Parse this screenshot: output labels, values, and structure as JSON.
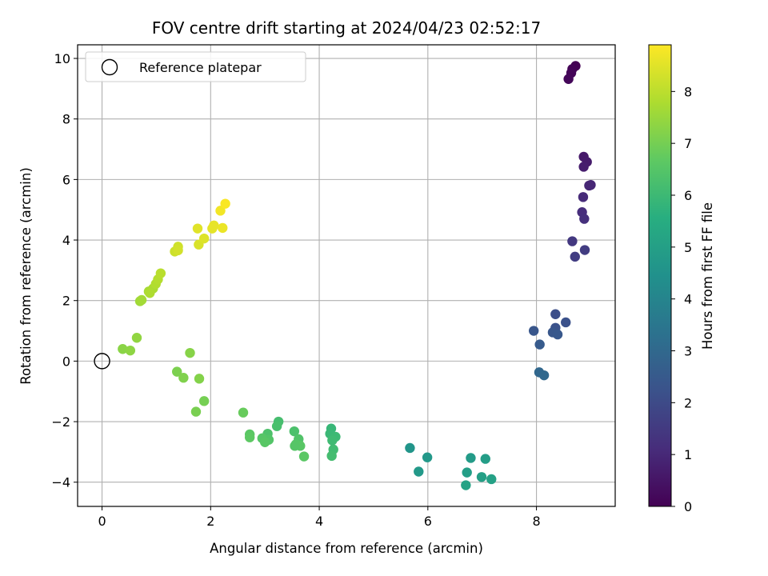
{
  "chart_data": {
    "type": "scatter",
    "title": "FOV centre drift starting at 2024/04/23 02:52:17",
    "xlabel": "Angular distance from reference (arcmin)",
    "ylabel": "Rotation from reference (arcmin)",
    "xlim": [
      -0.45,
      9.45
    ],
    "ylim": [
      -4.8,
      10.45
    ],
    "xticks": [
      0,
      2,
      4,
      6,
      8
    ],
    "yticks": [
      -4,
      -2,
      0,
      2,
      4,
      6,
      8,
      10
    ],
    "grid": true,
    "legend": {
      "position": "top-left",
      "entries": [
        "Reference platepar"
      ]
    },
    "reference_point": {
      "x": 0,
      "y": 0
    },
    "colorbar": {
      "label": "Hours from first FF file",
      "range": [
        0,
        8.9
      ],
      "ticks": [
        0,
        1,
        2,
        3,
        4,
        5,
        6,
        7,
        8
      ],
      "colormap": "viridis"
    },
    "points": [
      {
        "x": 8.72,
        "y": 9.75,
        "t": 0.0
      },
      {
        "x": 8.66,
        "y": 9.65,
        "t": 0.05
      },
      {
        "x": 8.64,
        "y": 9.52,
        "t": 0.1
      },
      {
        "x": 8.59,
        "y": 9.32,
        "t": 0.15
      },
      {
        "x": 8.87,
        "y": 6.75,
        "t": 0.6
      },
      {
        "x": 8.93,
        "y": 6.58,
        "t": 0.65
      },
      {
        "x": 8.87,
        "y": 6.42,
        "t": 0.7
      },
      {
        "x": 9.0,
        "y": 5.82,
        "t": 0.9
      },
      {
        "x": 8.97,
        "y": 5.8,
        "t": 0.95
      },
      {
        "x": 8.86,
        "y": 5.42,
        "t": 1.05
      },
      {
        "x": 8.84,
        "y": 4.92,
        "t": 1.15
      },
      {
        "x": 8.88,
        "y": 4.7,
        "t": 1.2
      },
      {
        "x": 8.66,
        "y": 3.96,
        "t": 1.45
      },
      {
        "x": 8.89,
        "y": 3.67,
        "t": 1.55
      },
      {
        "x": 8.71,
        "y": 3.45,
        "t": 1.6
      },
      {
        "x": 8.35,
        "y": 1.55,
        "t": 2.1
      },
      {
        "x": 8.54,
        "y": 1.28,
        "t": 2.2
      },
      {
        "x": 8.35,
        "y": 1.1,
        "t": 2.25
      },
      {
        "x": 7.95,
        "y": 1.0,
        "t": 2.35
      },
      {
        "x": 8.3,
        "y": 0.95,
        "t": 2.4
      },
      {
        "x": 8.39,
        "y": 0.88,
        "t": 2.45
      },
      {
        "x": 8.06,
        "y": 0.55,
        "t": 2.55
      },
      {
        "x": 8.05,
        "y": -0.37,
        "t": 2.95
      },
      {
        "x": 8.14,
        "y": -0.47,
        "t": 3.0
      },
      {
        "x": 5.67,
        "y": -2.87,
        "t": 4.6
      },
      {
        "x": 5.99,
        "y": -3.18,
        "t": 4.7
      },
      {
        "x": 5.83,
        "y": -3.65,
        "t": 4.75
      },
      {
        "x": 6.79,
        "y": -3.2,
        "t": 4.85
      },
      {
        "x": 7.06,
        "y": -3.23,
        "t": 4.9
      },
      {
        "x": 6.72,
        "y": -3.68,
        "t": 4.95
      },
      {
        "x": 6.99,
        "y": -3.83,
        "t": 5.0
      },
      {
        "x": 7.17,
        "y": -3.9,
        "t": 5.05
      },
      {
        "x": 6.7,
        "y": -4.1,
        "t": 5.1
      },
      {
        "x": 4.22,
        "y": -2.23,
        "t": 5.9
      },
      {
        "x": 4.2,
        "y": -2.4,
        "t": 5.95
      },
      {
        "x": 4.3,
        "y": -2.5,
        "t": 6.0
      },
      {
        "x": 4.24,
        "y": -2.62,
        "t": 6.05
      },
      {
        "x": 4.26,
        "y": -2.92,
        "t": 6.1
      },
      {
        "x": 4.23,
        "y": -3.13,
        "t": 6.15
      },
      {
        "x": 3.25,
        "y": -2.0,
        "t": 6.2
      },
      {
        "x": 3.22,
        "y": -2.15,
        "t": 6.25
      },
      {
        "x": 3.54,
        "y": -2.32,
        "t": 6.3
      },
      {
        "x": 3.05,
        "y": -2.4,
        "t": 6.35
      },
      {
        "x": 3.62,
        "y": -2.58,
        "t": 6.4
      },
      {
        "x": 3.07,
        "y": -2.6,
        "t": 6.45
      },
      {
        "x": 3.57,
        "y": -2.75,
        "t": 6.5
      },
      {
        "x": 3.65,
        "y": -2.8,
        "t": 6.55
      },
      {
        "x": 3.72,
        "y": -3.15,
        "t": 6.6
      },
      {
        "x": 2.95,
        "y": -2.55,
        "t": 6.5
      },
      {
        "x": 3.0,
        "y": -2.68,
        "t": 6.55
      },
      {
        "x": 2.72,
        "y": -2.42,
        "t": 6.6
      },
      {
        "x": 2.72,
        "y": -2.52,
        "t": 6.65
      },
      {
        "x": 3.55,
        "y": -2.8,
        "t": 6.5
      },
      {
        "x": 2.6,
        "y": -1.7,
        "t": 6.8
      },
      {
        "x": 1.88,
        "y": -1.32,
        "t": 7.0
      },
      {
        "x": 1.73,
        "y": -1.67,
        "t": 7.05
      },
      {
        "x": 1.38,
        "y": -0.35,
        "t": 7.1
      },
      {
        "x": 1.5,
        "y": -0.55,
        "t": 7.15
      },
      {
        "x": 1.79,
        "y": -0.58,
        "t": 7.2
      },
      {
        "x": 1.62,
        "y": 0.27,
        "t": 7.25
      },
      {
        "x": 0.38,
        "y": 0.4,
        "t": 7.3
      },
      {
        "x": 0.52,
        "y": 0.35,
        "t": 7.35
      },
      {
        "x": 0.64,
        "y": 0.77,
        "t": 7.4
      },
      {
        "x": 0.7,
        "y": 1.98,
        "t": 7.6
      },
      {
        "x": 0.73,
        "y": 2.02,
        "t": 7.65
      },
      {
        "x": 0.86,
        "y": 2.3,
        "t": 7.7
      },
      {
        "x": 0.94,
        "y": 2.4,
        "t": 7.75
      },
      {
        "x": 0.88,
        "y": 2.25,
        "t": 7.8
      },
      {
        "x": 0.99,
        "y": 2.55,
        "t": 7.85
      },
      {
        "x": 1.03,
        "y": 2.7,
        "t": 7.9
      },
      {
        "x": 1.08,
        "y": 2.9,
        "t": 7.95
      },
      {
        "x": 1.34,
        "y": 3.62,
        "t": 8.2
      },
      {
        "x": 1.4,
        "y": 3.78,
        "t": 8.25
      },
      {
        "x": 1.4,
        "y": 3.66,
        "t": 8.3
      },
      {
        "x": 1.78,
        "y": 3.85,
        "t": 8.4
      },
      {
        "x": 1.88,
        "y": 4.05,
        "t": 8.45
      },
      {
        "x": 1.76,
        "y": 4.38,
        "t": 8.5
      },
      {
        "x": 2.03,
        "y": 4.38,
        "t": 8.55
      },
      {
        "x": 2.06,
        "y": 4.48,
        "t": 8.6
      },
      {
        "x": 2.22,
        "y": 4.4,
        "t": 8.65
      },
      {
        "x": 2.18,
        "y": 4.97,
        "t": 8.75
      },
      {
        "x": 2.27,
        "y": 5.2,
        "t": 8.85
      }
    ]
  }
}
